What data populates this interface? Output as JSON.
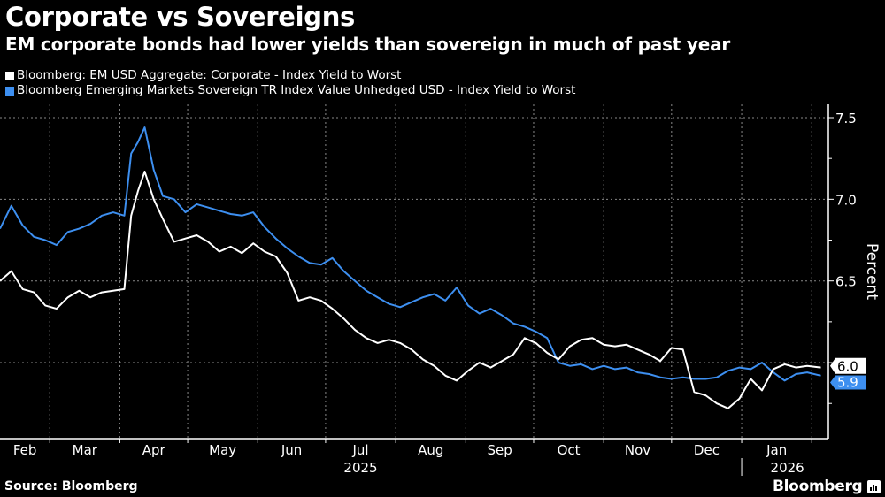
{
  "header": {
    "title": "Corporate vs Sovereigns",
    "subtitle": "EM corporate bonds had lower yields than sovereign in much of past year"
  },
  "footer": {
    "source": "Source: Bloomberg",
    "brand": "Bloomberg"
  },
  "chart_data": {
    "type": "line",
    "title": "Corporate vs Sovereigns",
    "subtitle": "EM corporate bonds had lower yields than sovereign in much of past year",
    "xlabel": "",
    "ylabel": "Percent",
    "ylim": [
      5.55,
      7.65
    ],
    "yticks": [
      6.0,
      6.5,
      7.0,
      7.5
    ],
    "ytick_labels": [
      "6.0",
      "6.5",
      "7.0",
      "7.5"
    ],
    "xticks": [
      "Feb",
      "Mar",
      "Apr",
      "May",
      "Jun",
      "Jul",
      "Aug",
      "Sep",
      "Oct",
      "Nov",
      "Dec",
      "Jan"
    ],
    "x_year_labels": [
      {
        "label": "2025",
        "under": "Jul"
      },
      {
        "label": "2026",
        "under": "Jan"
      }
    ],
    "x_range": [
      "2025-02-07",
      "2026-02-05"
    ],
    "grid": true,
    "legend_position": "top-left",
    "last_value_labels": [
      {
        "series": "Bloomberg: EM USD Aggregate: Corporate - Index Yield to Worst",
        "value": "6.0"
      },
      {
        "series": "Bloomberg Emerging Markets Sovereign TR Index Value Unhedged USD - Index Yield to Worst",
        "value": "5.9"
      }
    ],
    "x": [
      "2025-02-07",
      "2025-02-12",
      "2025-02-17",
      "2025-02-22",
      "2025-02-27",
      "2025-03-04",
      "2025-03-09",
      "2025-03-14",
      "2025-03-19",
      "2025-03-24",
      "2025-03-29",
      "2025-04-03",
      "2025-04-06",
      "2025-04-09",
      "2025-04-12",
      "2025-04-16",
      "2025-04-20",
      "2025-04-25",
      "2025-04-30",
      "2025-05-05",
      "2025-05-10",
      "2025-05-15",
      "2025-05-20",
      "2025-05-25",
      "2025-05-30",
      "2025-06-04",
      "2025-06-09",
      "2025-06-14",
      "2025-06-19",
      "2025-06-24",
      "2025-06-29",
      "2025-07-04",
      "2025-07-09",
      "2025-07-14",
      "2025-07-19",
      "2025-07-24",
      "2025-07-29",
      "2025-08-03",
      "2025-08-08",
      "2025-08-13",
      "2025-08-18",
      "2025-08-23",
      "2025-08-28",
      "2025-09-02",
      "2025-09-07",
      "2025-09-12",
      "2025-09-17",
      "2025-09-22",
      "2025-09-27",
      "2025-10-02",
      "2025-10-07",
      "2025-10-12",
      "2025-10-17",
      "2025-10-22",
      "2025-10-27",
      "2025-11-01",
      "2025-11-06",
      "2025-11-11",
      "2025-11-16",
      "2025-11-21",
      "2025-11-26",
      "2025-12-01",
      "2025-12-06",
      "2025-12-11",
      "2025-12-16",
      "2025-12-21",
      "2025-12-26",
      "2025-12-31",
      "2026-01-05",
      "2026-01-10",
      "2026-01-15",
      "2026-01-20",
      "2026-01-25",
      "2026-01-30",
      "2026-02-05"
    ],
    "series": [
      {
        "name": "Bloomberg: EM USD Aggregate: Corporate - Index Yield to Worst",
        "color": "#ffffff",
        "values": [
          6.5,
          6.56,
          6.45,
          6.43,
          6.35,
          6.33,
          6.4,
          6.44,
          6.4,
          6.43,
          6.44,
          6.45,
          6.9,
          7.05,
          7.17,
          7.0,
          6.88,
          6.74,
          6.76,
          6.78,
          6.74,
          6.68,
          6.71,
          6.67,
          6.73,
          6.68,
          6.65,
          6.55,
          6.38,
          6.4,
          6.38,
          6.33,
          6.27,
          6.2,
          6.15,
          6.12,
          6.14,
          6.12,
          6.08,
          6.02,
          5.98,
          5.92,
          5.89,
          5.95,
          6.0,
          5.97,
          6.01,
          6.05,
          6.15,
          6.12,
          6.06,
          6.02,
          6.1,
          6.14,
          6.15,
          6.11,
          6.1,
          6.11,
          6.08,
          6.05,
          6.01,
          6.09,
          6.08,
          5.82,
          5.8,
          5.75,
          5.72,
          5.78,
          5.9,
          5.83,
          5.96,
          5.99,
          5.97,
          5.98,
          5.97
        ]
      },
      {
        "name": "Bloomberg Emerging Markets Sovereign TR Index Value Unhedged USD - Index Yield to Worst",
        "color": "#3d8ff0",
        "values": [
          6.82,
          6.96,
          6.84,
          6.77,
          6.75,
          6.72,
          6.8,
          6.82,
          6.85,
          6.9,
          6.92,
          6.9,
          7.28,
          7.35,
          7.44,
          7.18,
          7.02,
          7.0,
          6.92,
          6.97,
          6.95,
          6.93,
          6.91,
          6.9,
          6.92,
          6.83,
          6.76,
          6.7,
          6.65,
          6.61,
          6.6,
          6.64,
          6.56,
          6.5,
          6.44,
          6.4,
          6.36,
          6.34,
          6.37,
          6.4,
          6.42,
          6.38,
          6.46,
          6.35,
          6.3,
          6.33,
          6.29,
          6.24,
          6.22,
          6.19,
          6.15,
          6.0,
          5.98,
          5.99,
          5.96,
          5.98,
          5.96,
          5.97,
          5.94,
          5.93,
          5.91,
          5.9,
          5.91,
          5.9,
          5.9,
          5.91,
          5.95,
          5.97,
          5.96,
          6.0,
          5.94,
          5.89,
          5.93,
          5.94,
          5.92
        ]
      }
    ]
  }
}
